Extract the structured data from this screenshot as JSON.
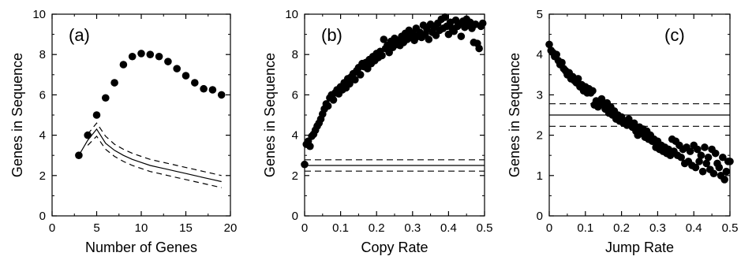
{
  "chart_data": [
    {
      "type": "scatter",
      "panel_label": "(a)",
      "xlabel": "Number of Genes",
      "ylabel": "Genes in Sequence",
      "xlim": [
        0,
        20
      ],
      "ylim": [
        0,
        10
      ],
      "xticks": [
        0,
        5,
        10,
        15,
        20
      ],
      "yticks": [
        0,
        2,
        4,
        6,
        8,
        10
      ],
      "series": [
        {
          "style": "points",
          "x": [
            3,
            4,
            5,
            6,
            7,
            8,
            9,
            10,
            11,
            12,
            13,
            14,
            15,
            16,
            17,
            18,
            19
          ],
          "y": [
            3.0,
            4.0,
            5.0,
            5.85,
            6.6,
            7.5,
            7.9,
            8.05,
            8.0,
            7.9,
            7.65,
            7.3,
            6.95,
            6.6,
            6.3,
            6.25,
            6.0
          ]
        },
        {
          "style": "solid-line",
          "x": [
            3,
            4,
            5,
            6,
            7,
            8,
            9,
            10,
            11,
            12,
            13,
            14,
            15,
            16,
            17,
            18,
            19
          ],
          "y": [
            3.0,
            3.75,
            4.3,
            3.6,
            3.25,
            3.0,
            2.8,
            2.65,
            2.5,
            2.4,
            2.3,
            2.2,
            2.1,
            2.0,
            1.9,
            1.8,
            1.7
          ]
        },
        {
          "style": "dashed-line",
          "x": [
            4,
            5,
            6,
            7,
            8,
            9,
            10,
            11,
            12,
            13,
            14,
            15,
            16,
            17,
            18,
            19
          ],
          "y": [
            4.05,
            4.6,
            3.95,
            3.55,
            3.3,
            3.1,
            2.95,
            2.8,
            2.7,
            2.6,
            2.5,
            2.4,
            2.3,
            2.2,
            2.1,
            2.0
          ]
        },
        {
          "style": "dashed-line",
          "x": [
            4,
            5,
            6,
            7,
            8,
            9,
            10,
            11,
            12,
            13,
            14,
            15,
            16,
            17,
            18,
            19
          ],
          "y": [
            3.5,
            3.95,
            3.3,
            2.95,
            2.7,
            2.5,
            2.35,
            2.2,
            2.1,
            2.0,
            1.9,
            1.8,
            1.7,
            1.6,
            1.5,
            1.4
          ]
        }
      ]
    },
    {
      "type": "scatter",
      "panel_label": "(b)",
      "xlabel": "Copy Rate",
      "ylabel": "Genes in Sequence",
      "xlim": [
        0,
        0.5
      ],
      "ylim": [
        0,
        10
      ],
      "xticks": [
        0,
        0.1,
        0.2,
        0.3,
        0.4,
        0.5
      ],
      "xtick_labels": [
        "0",
        "0.1",
        "0.2",
        "0.3",
        "0.4",
        "0.5"
      ],
      "yticks": [
        0,
        2,
        4,
        6,
        8,
        10
      ],
      "points": [
        [
          0.0,
          2.55
        ],
        [
          0.005,
          3.55
        ],
        [
          0.01,
          3.7
        ],
        [
          0.015,
          3.45
        ],
        [
          0.02,
          3.95
        ],
        [
          0.025,
          4.05
        ],
        [
          0.03,
          4.25
        ],
        [
          0.035,
          4.45
        ],
        [
          0.04,
          4.6
        ],
        [
          0.045,
          4.8
        ],
        [
          0.05,
          5.05
        ],
        [
          0.055,
          5.3
        ],
        [
          0.06,
          5.55
        ],
        [
          0.065,
          5.45
        ],
        [
          0.07,
          5.85
        ],
        [
          0.075,
          6.0
        ],
        [
          0.08,
          5.75
        ],
        [
          0.085,
          6.1
        ],
        [
          0.09,
          6.25
        ],
        [
          0.095,
          6.05
        ],
        [
          0.1,
          6.4
        ],
        [
          0.105,
          6.25
        ],
        [
          0.11,
          6.6
        ],
        [
          0.115,
          6.35
        ],
        [
          0.12,
          6.8
        ],
        [
          0.125,
          6.55
        ],
        [
          0.13,
          6.9
        ],
        [
          0.135,
          7.05
        ],
        [
          0.14,
          6.75
        ],
        [
          0.145,
          7.2
        ],
        [
          0.15,
          7.35
        ],
        [
          0.155,
          7.0
        ],
        [
          0.16,
          7.55
        ],
        [
          0.165,
          7.4
        ],
        [
          0.17,
          7.6
        ],
        [
          0.175,
          7.3
        ],
        [
          0.18,
          7.75
        ],
        [
          0.185,
          7.55
        ],
        [
          0.19,
          7.9
        ],
        [
          0.195,
          7.7
        ],
        [
          0.2,
          8.05
        ],
        [
          0.205,
          7.85
        ],
        [
          0.21,
          8.15
        ],
        [
          0.215,
          7.95
        ],
        [
          0.22,
          8.75
        ],
        [
          0.225,
          8.3
        ],
        [
          0.23,
          8.45
        ],
        [
          0.235,
          8.1
        ],
        [
          0.24,
          8.65
        ],
        [
          0.245,
          8.35
        ],
        [
          0.25,
          8.8
        ],
        [
          0.255,
          8.5
        ],
        [
          0.26,
          8.7
        ],
        [
          0.265,
          8.45
        ],
        [
          0.27,
          8.9
        ],
        [
          0.275,
          8.6
        ],
        [
          0.28,
          9.05
        ],
        [
          0.285,
          8.75
        ],
        [
          0.29,
          9.2
        ],
        [
          0.295,
          8.85
        ],
        [
          0.3,
          9.05
        ],
        [
          0.305,
          8.7
        ],
        [
          0.31,
          9.3
        ],
        [
          0.315,
          8.9
        ],
        [
          0.32,
          9.1
        ],
        [
          0.325,
          8.85
        ],
        [
          0.33,
          9.45
        ],
        [
          0.335,
          9.0
        ],
        [
          0.34,
          9.25
        ],
        [
          0.345,
          8.75
        ],
        [
          0.35,
          9.5
        ],
        [
          0.355,
          9.1
        ],
        [
          0.36,
          9.35
        ],
        [
          0.365,
          8.95
        ],
        [
          0.37,
          9.55
        ],
        [
          0.375,
          9.2
        ],
        [
          0.38,
          9.75
        ],
        [
          0.385,
          9.3
        ],
        [
          0.39,
          9.85
        ],
        [
          0.395,
          9.4
        ],
        [
          0.4,
          9.0
        ],
        [
          0.405,
          9.6
        ],
        [
          0.41,
          9.3
        ],
        [
          0.415,
          9.15
        ],
        [
          0.42,
          9.7
        ],
        [
          0.425,
          9.4
        ],
        [
          0.43,
          9.5
        ],
        [
          0.435,
          8.9
        ],
        [
          0.44,
          9.65
        ],
        [
          0.445,
          9.35
        ],
        [
          0.45,
          9.75
        ],
        [
          0.455,
          9.45
        ],
        [
          0.46,
          9.6
        ],
        [
          0.465,
          9.3
        ],
        [
          0.47,
          8.6
        ],
        [
          0.475,
          9.5
        ],
        [
          0.48,
          8.55
        ],
        [
          0.485,
          8.3
        ],
        [
          0.49,
          9.4
        ],
        [
          0.495,
          9.55
        ]
      ],
      "hlines": [
        {
          "y": 2.78,
          "style": "dashed"
        },
        {
          "y": 2.5,
          "style": "solid"
        },
        {
          "y": 2.22,
          "style": "dashed"
        }
      ]
    },
    {
      "type": "scatter",
      "panel_label": "(c)",
      "xlabel": "Jump Rate",
      "ylabel": "Genes in Sequence",
      "xlim": [
        0,
        0.5
      ],
      "ylim": [
        0,
        5
      ],
      "xticks": [
        0,
        0.1,
        0.2,
        0.3,
        0.4,
        0.5
      ],
      "xtick_labels": [
        "0",
        "0.1",
        "0.2",
        "0.3",
        "0.4",
        "0.5"
      ],
      "yticks": [
        0,
        1,
        2,
        3,
        4,
        5
      ],
      "points": [
        [
          0.0,
          4.25
        ],
        [
          0.005,
          4.1
        ],
        [
          0.01,
          4.05
        ],
        [
          0.015,
          3.95
        ],
        [
          0.02,
          4.0
        ],
        [
          0.025,
          3.85
        ],
        [
          0.03,
          3.75
        ],
        [
          0.035,
          3.8
        ],
        [
          0.04,
          3.65
        ],
        [
          0.045,
          3.6
        ],
        [
          0.05,
          3.5
        ],
        [
          0.055,
          3.55
        ],
        [
          0.06,
          3.4
        ],
        [
          0.065,
          3.45
        ],
        [
          0.07,
          3.35
        ],
        [
          0.075,
          3.3
        ],
        [
          0.08,
          3.4
        ],
        [
          0.085,
          3.2
        ],
        [
          0.09,
          3.25
        ],
        [
          0.095,
          3.1
        ],
        [
          0.1,
          3.2
        ],
        [
          0.105,
          3.05
        ],
        [
          0.11,
          3.15
        ],
        [
          0.115,
          3.05
        ],
        [
          0.12,
          3.1
        ],
        [
          0.125,
          2.75
        ],
        [
          0.13,
          2.85
        ],
        [
          0.135,
          2.7
        ],
        [
          0.14,
          2.8
        ],
        [
          0.145,
          2.9
        ],
        [
          0.15,
          2.75
        ],
        [
          0.155,
          2.65
        ],
        [
          0.16,
          2.8
        ],
        [
          0.165,
          2.55
        ],
        [
          0.17,
          2.7
        ],
        [
          0.175,
          2.5
        ],
        [
          0.18,
          2.6
        ],
        [
          0.185,
          2.4
        ],
        [
          0.19,
          2.5
        ],
        [
          0.195,
          2.35
        ],
        [
          0.2,
          2.45
        ],
        [
          0.205,
          2.3
        ],
        [
          0.21,
          2.35
        ],
        [
          0.215,
          2.25
        ],
        [
          0.22,
          2.4
        ],
        [
          0.225,
          2.3
        ],
        [
          0.23,
          2.2
        ],
        [
          0.235,
          2.3
        ],
        [
          0.24,
          2.1
        ],
        [
          0.245,
          2.0
        ],
        [
          0.25,
          2.2
        ],
        [
          0.255,
          2.05
        ],
        [
          0.26,
          2.15
        ],
        [
          0.265,
          1.95
        ],
        [
          0.27,
          2.1
        ],
        [
          0.275,
          1.9
        ],
        [
          0.28,
          2.0
        ],
        [
          0.285,
          1.85
        ],
        [
          0.29,
          1.9
        ],
        [
          0.295,
          1.7
        ],
        [
          0.3,
          1.85
        ],
        [
          0.305,
          1.65
        ],
        [
          0.31,
          1.75
        ],
        [
          0.315,
          1.6
        ],
        [
          0.32,
          1.7
        ],
        [
          0.325,
          1.55
        ],
        [
          0.33,
          1.65
        ],
        [
          0.335,
          1.5
        ],
        [
          0.34,
          1.9
        ],
        [
          0.345,
          1.6
        ],
        [
          0.35,
          1.85
        ],
        [
          0.355,
          1.5
        ],
        [
          0.36,
          1.75
        ],
        [
          0.365,
          1.45
        ],
        [
          0.37,
          1.65
        ],
        [
          0.375,
          1.3
        ],
        [
          0.38,
          1.7
        ],
        [
          0.385,
          1.35
        ],
        [
          0.39,
          1.6
        ],
        [
          0.395,
          1.25
        ],
        [
          0.4,
          1.75
        ],
        [
          0.405,
          1.2
        ],
        [
          0.41,
          1.65
        ],
        [
          0.415,
          1.35
        ],
        [
          0.42,
          1.5
        ],
        [
          0.425,
          1.1
        ],
        [
          0.43,
          1.7
        ],
        [
          0.435,
          1.3
        ],
        [
          0.44,
          1.45
        ],
        [
          0.445,
          1.15
        ],
        [
          0.45,
          1.65
        ],
        [
          0.455,
          1.05
        ],
        [
          0.46,
          1.55
        ],
        [
          0.465,
          1.3
        ],
        [
          0.47,
          1.2
        ],
        [
          0.475,
          1.0
        ],
        [
          0.48,
          1.45
        ],
        [
          0.485,
          0.9
        ],
        [
          0.49,
          1.1
        ],
        [
          0.495,
          1.35
        ],
        [
          0.5,
          1.35
        ]
      ],
      "hlines": [
        {
          "y": 2.78,
          "style": "dashed"
        },
        {
          "y": 2.5,
          "style": "solid"
        },
        {
          "y": 2.22,
          "style": "dashed"
        }
      ]
    }
  ]
}
